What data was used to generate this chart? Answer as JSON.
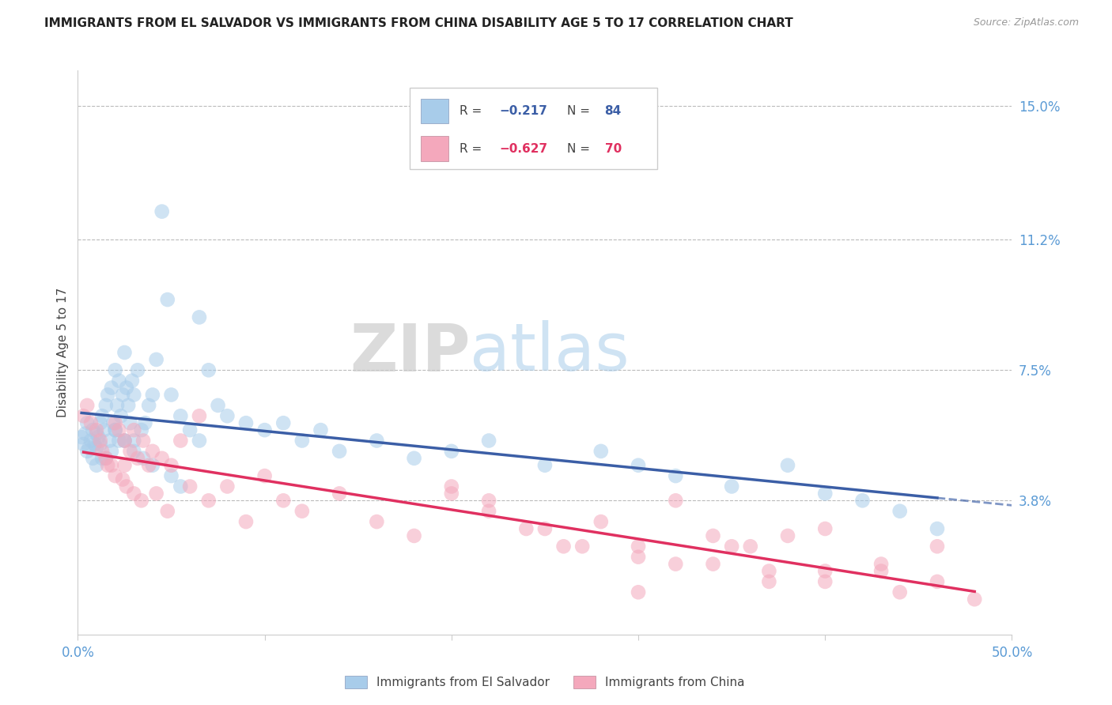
{
  "title": "IMMIGRANTS FROM EL SALVADOR VS IMMIGRANTS FROM CHINA DISABILITY AGE 5 TO 17 CORRELATION CHART",
  "source": "Source: ZipAtlas.com",
  "ylabel": "Disability Age 5 to 17",
  "xlim": [
    0.0,
    0.5
  ],
  "ylim": [
    0.0,
    0.16
  ],
  "xticklabels_show": [
    "0.0%",
    "50.0%"
  ],
  "xtick_show": [
    0.0,
    0.5
  ],
  "ytick_values": [
    0.038,
    0.075,
    0.112,
    0.15
  ],
  "ytick_labels": [
    "3.8%",
    "7.5%",
    "11.2%",
    "15.0%"
  ],
  "color_salvador": "#A8CCEA",
  "color_china": "#F4A8BC",
  "color_trendline_salvador": "#3B5EA6",
  "color_trendline_china": "#E03060",
  "color_axis_labels": "#5B9BD5",
  "legend_label_salvador": "Immigrants from El Salvador",
  "legend_label_china": "Immigrants from China",
  "watermark_zip": "ZIP",
  "watermark_atlas": "atlas",
  "background_color": "#FFFFFF",
  "grid_color": "#BBBBBB",
  "salvador_x": [
    0.002,
    0.003,
    0.004,
    0.005,
    0.005,
    0.006,
    0.007,
    0.008,
    0.008,
    0.009,
    0.01,
    0.01,
    0.01,
    0.011,
    0.012,
    0.012,
    0.013,
    0.013,
    0.014,
    0.015,
    0.015,
    0.016,
    0.017,
    0.018,
    0.018,
    0.019,
    0.02,
    0.02,
    0.021,
    0.022,
    0.022,
    0.023,
    0.024,
    0.025,
    0.025,
    0.026,
    0.027,
    0.028,
    0.029,
    0.03,
    0.03,
    0.032,
    0.034,
    0.036,
    0.038,
    0.04,
    0.042,
    0.045,
    0.048,
    0.05,
    0.055,
    0.06,
    0.065,
    0.07,
    0.075,
    0.08,
    0.09,
    0.1,
    0.11,
    0.12,
    0.13,
    0.14,
    0.16,
    0.18,
    0.2,
    0.22,
    0.25,
    0.28,
    0.3,
    0.32,
    0.35,
    0.38,
    0.4,
    0.42,
    0.44,
    0.46,
    0.02,
    0.025,
    0.03,
    0.035,
    0.04,
    0.05,
    0.055,
    0.065
  ],
  "salvador_y": [
    0.056,
    0.054,
    0.057,
    0.052,
    0.06,
    0.053,
    0.055,
    0.058,
    0.05,
    0.054,
    0.057,
    0.053,
    0.048,
    0.056,
    0.06,
    0.054,
    0.062,
    0.05,
    0.058,
    0.065,
    0.05,
    0.068,
    0.055,
    0.07,
    0.052,
    0.06,
    0.075,
    0.058,
    0.065,
    0.072,
    0.055,
    0.062,
    0.068,
    0.08,
    0.055,
    0.07,
    0.065,
    0.06,
    0.072,
    0.068,
    0.055,
    0.075,
    0.058,
    0.06,
    0.065,
    0.068,
    0.078,
    0.12,
    0.095,
    0.068,
    0.062,
    0.058,
    0.09,
    0.075,
    0.065,
    0.062,
    0.06,
    0.058,
    0.06,
    0.055,
    0.058,
    0.052,
    0.055,
    0.05,
    0.052,
    0.055,
    0.048,
    0.052,
    0.048,
    0.045,
    0.042,
    0.048,
    0.04,
    0.038,
    0.035,
    0.03,
    0.058,
    0.055,
    0.052,
    0.05,
    0.048,
    0.045,
    0.042,
    0.055
  ],
  "china_x": [
    0.003,
    0.005,
    0.007,
    0.01,
    0.012,
    0.013,
    0.015,
    0.016,
    0.018,
    0.02,
    0.02,
    0.022,
    0.024,
    0.025,
    0.026,
    0.028,
    0.03,
    0.03,
    0.032,
    0.034,
    0.035,
    0.038,
    0.04,
    0.042,
    0.045,
    0.048,
    0.05,
    0.055,
    0.06,
    0.065,
    0.07,
    0.08,
    0.09,
    0.1,
    0.11,
    0.12,
    0.14,
    0.16,
    0.18,
    0.2,
    0.22,
    0.24,
    0.26,
    0.28,
    0.3,
    0.32,
    0.34,
    0.36,
    0.38,
    0.4,
    0.43,
    0.46,
    0.48,
    0.2,
    0.22,
    0.25,
    0.27,
    0.3,
    0.32,
    0.35,
    0.37,
    0.4,
    0.43,
    0.46,
    0.3,
    0.34,
    0.37,
    0.4,
    0.44,
    0.025
  ],
  "china_y": [
    0.062,
    0.065,
    0.06,
    0.058,
    0.055,
    0.052,
    0.05,
    0.048,
    0.048,
    0.06,
    0.045,
    0.058,
    0.044,
    0.055,
    0.042,
    0.052,
    0.058,
    0.04,
    0.05,
    0.038,
    0.055,
    0.048,
    0.052,
    0.04,
    0.05,
    0.035,
    0.048,
    0.055,
    0.042,
    0.062,
    0.038,
    0.042,
    0.032,
    0.045,
    0.038,
    0.035,
    0.04,
    0.032,
    0.028,
    0.04,
    0.035,
    0.03,
    0.025,
    0.032,
    0.022,
    0.038,
    0.028,
    0.025,
    0.028,
    0.03,
    0.02,
    0.015,
    0.01,
    0.042,
    0.038,
    0.03,
    0.025,
    0.025,
    0.02,
    0.025,
    0.018,
    0.015,
    0.018,
    0.025,
    0.012,
    0.02,
    0.015,
    0.018,
    0.012,
    0.048
  ]
}
